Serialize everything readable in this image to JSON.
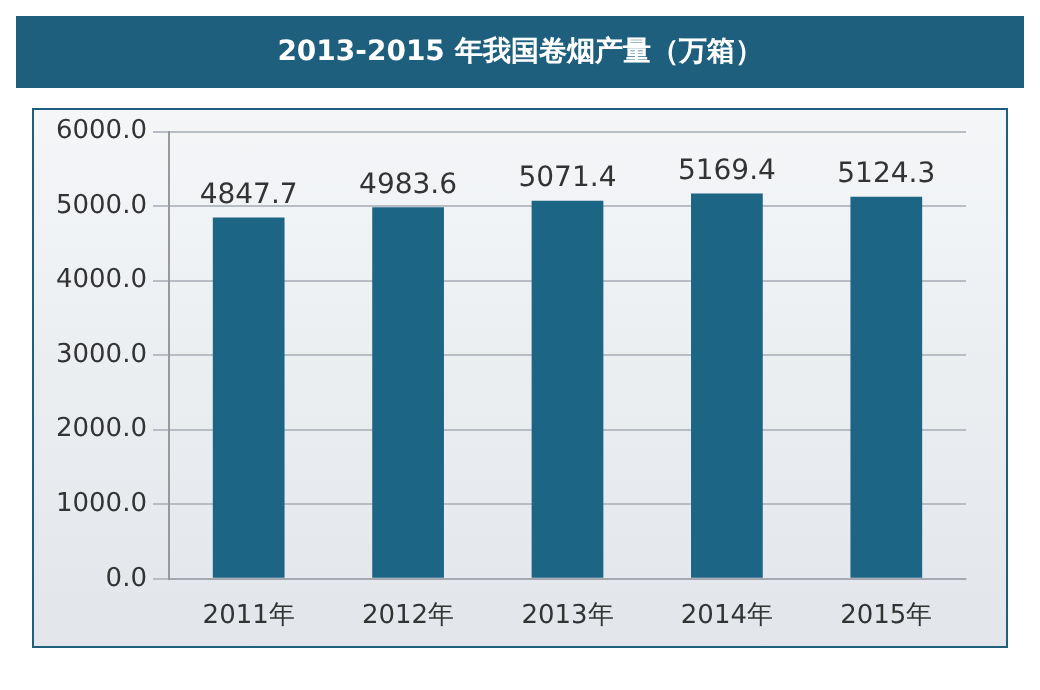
{
  "chart_data": {
    "type": "bar",
    "title": "2013-2015 年我国卷烟产量（万箱）",
    "categories": [
      "2011年",
      "2012年",
      "2013年",
      "2014年",
      "2015年"
    ],
    "values": [
      4847.7,
      4983.6,
      5071.4,
      5169.4,
      5124.3
    ],
    "color": "#1d6584",
    "ylim": [
      0,
      6000
    ],
    "yticks": [
      {
        "value": 0,
        "label": "0.0"
      },
      {
        "value": 1000,
        "label": "1000.0"
      },
      {
        "value": 2000,
        "label": "2000.0"
      },
      {
        "value": 3000,
        "label": "3000.0"
      },
      {
        "value": 4000,
        "label": "4000.0"
      },
      {
        "value": 5000,
        "label": "5000.0"
      },
      {
        "value": 6000,
        "label": "6000.0"
      }
    ],
    "grid": "y",
    "data_labels": true
  }
}
